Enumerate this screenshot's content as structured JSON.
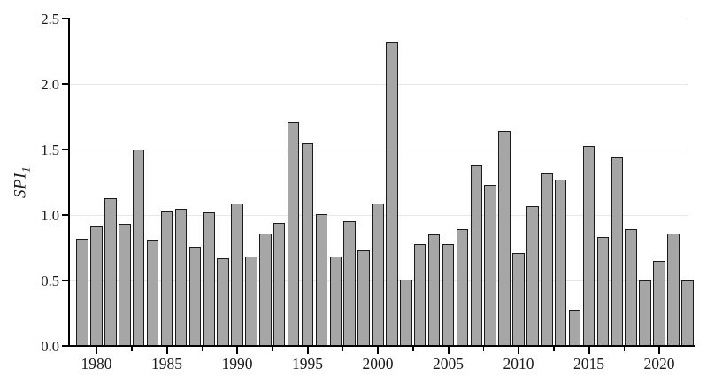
{
  "chart_data": {
    "type": "bar",
    "title": "",
    "xlabel": "",
    "ylabel_main": "SPI",
    "ylabel_sub": "1",
    "ylim": [
      0,
      2.5
    ],
    "grid": "horizontal-light-gray",
    "legend_position": "none",
    "colors": {
      "bar_fill": "#a6a6a6",
      "bar_stroke": "#1b1b1b",
      "grid_color": "#e7e7e7",
      "axis_color": "#000000",
      "text_color": "#1a1a1a",
      "background": "#ffffff"
    },
    "y_ticks": [
      {
        "value": 0.0,
        "label": "0.0"
      },
      {
        "value": 0.5,
        "label": "0.5"
      },
      {
        "value": 1.0,
        "label": "1.0"
      },
      {
        "value": 1.5,
        "label": "1.5"
      },
      {
        "value": 2.0,
        "label": "2.0"
      },
      {
        "value": 2.5,
        "label": "2.5"
      }
    ],
    "x_major_ticks": [
      {
        "year": 1980,
        "label": "1980"
      },
      {
        "year": 1985,
        "label": "1985"
      },
      {
        "year": 1990,
        "label": "1990"
      },
      {
        "year": 1995,
        "label": "1995"
      },
      {
        "year": 2000,
        "label": "2000"
      },
      {
        "year": 2005,
        "label": "2005"
      },
      {
        "year": 2010,
        "label": "2010"
      },
      {
        "year": 2015,
        "label": "2015"
      },
      {
        "year": 2020,
        "label": "2020"
      }
    ],
    "x_minor_tick_years": [
      1982.5,
      1987.5,
      1992.5,
      1997.5,
      2002.5,
      2007.5,
      2012.5,
      2017.5
    ],
    "categories": [
      1979,
      1980,
      1981,
      1982,
      1983,
      1984,
      1985,
      1986,
      1987,
      1988,
      1989,
      1990,
      1991,
      1992,
      1993,
      1994,
      1995,
      1996,
      1997,
      1998,
      1999,
      2000,
      2001,
      2002,
      2003,
      2004,
      2005,
      2006,
      2007,
      2008,
      2009,
      2010,
      2011,
      2012,
      2013,
      2014,
      2015,
      2016,
      2017,
      2018,
      2019,
      2020,
      2021,
      2022
    ],
    "values": [
      0.82,
      0.92,
      1.13,
      0.93,
      1.5,
      0.81,
      1.03,
      1.05,
      0.76,
      1.02,
      0.67,
      1.09,
      0.68,
      0.86,
      0.94,
      1.71,
      1.55,
      1.01,
      0.68,
      0.95,
      0.73,
      1.09,
      2.32,
      0.51,
      0.78,
      0.85,
      0.78,
      0.89,
      1.38,
      1.23,
      1.64,
      0.71,
      1.07,
      1.32,
      1.27,
      0.28,
      1.53,
      0.83,
      1.44,
      0.89,
      0.5,
      0.65,
      0.86,
      0.5
    ]
  }
}
